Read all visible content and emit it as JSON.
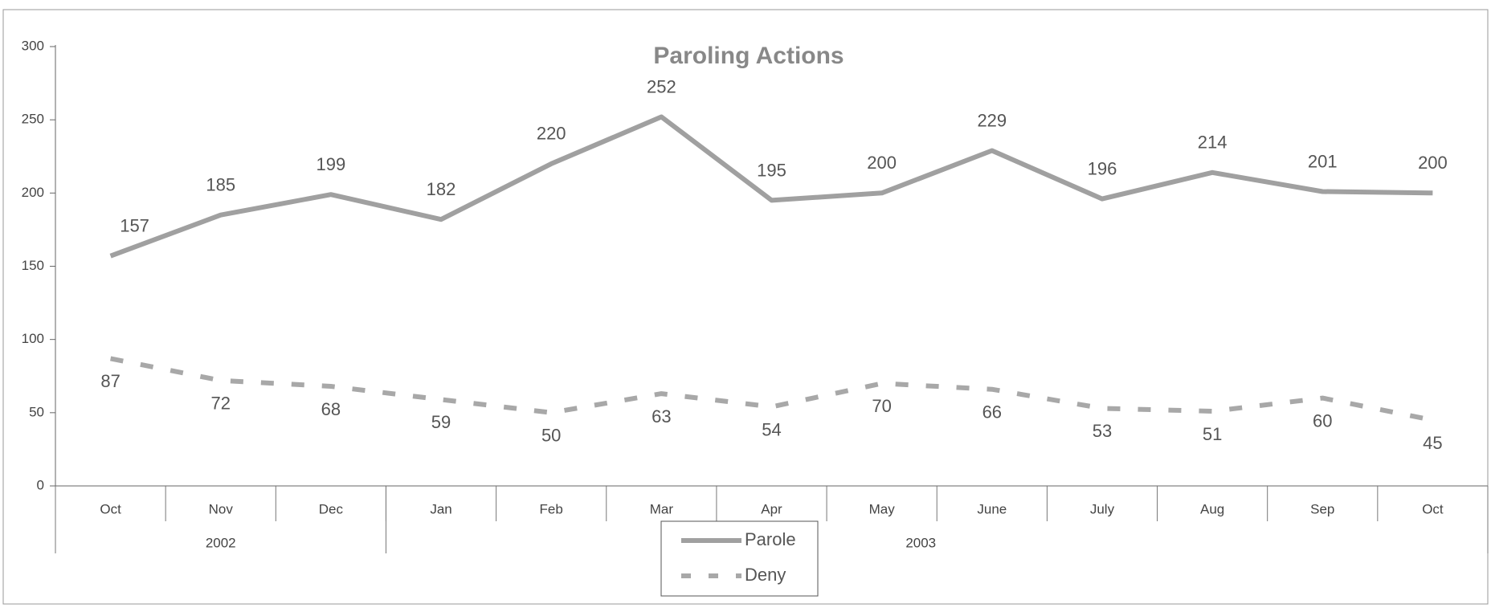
{
  "chart_data": {
    "type": "line",
    "title": "Paroling Actions",
    "categories": [
      "Oct",
      "Nov",
      "Dec",
      "Jan",
      "Feb",
      "Mar",
      "Apr",
      "May",
      "June",
      "July",
      "Aug",
      "Sep",
      "Oct"
    ],
    "year_groups": [
      {
        "label": "2002",
        "count": 3
      },
      {
        "label": "2003",
        "count": 10
      }
    ],
    "series": [
      {
        "name": "Parole",
        "color": "#a0a0a0",
        "dash": false,
        "values": [
          157,
          185,
          199,
          182,
          220,
          252,
          195,
          200,
          229,
          196,
          214,
          201,
          200
        ]
      },
      {
        "name": "Deny",
        "color": "#a8a8a8",
        "dash": true,
        "values": [
          87,
          72,
          68,
          59,
          50,
          63,
          54,
          70,
          66,
          53,
          51,
          60,
          45
        ]
      }
    ],
    "ylim": [
      0,
      300
    ],
    "yticks": [
      0,
      50,
      100,
      150,
      200,
      250,
      300
    ],
    "grid": false,
    "legend": "bottom"
  }
}
